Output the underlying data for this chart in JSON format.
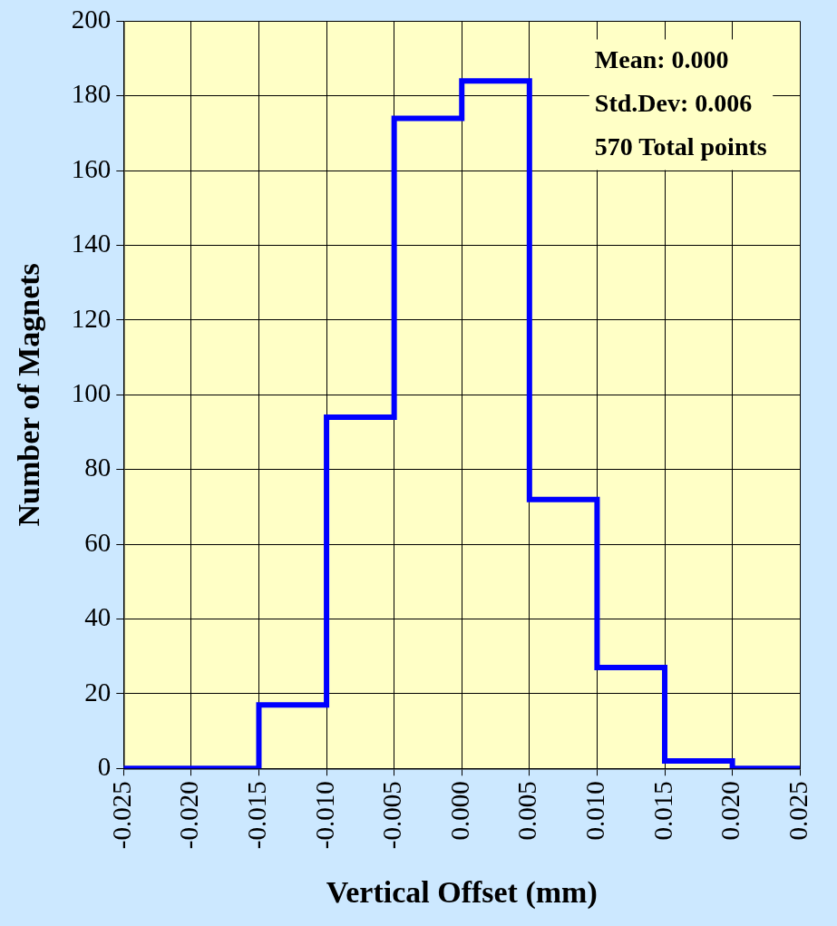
{
  "chart_data": {
    "type": "histogram",
    "xlabel": "Vertical Offset (mm)",
    "ylabel": "Number of Magnets",
    "bins": [
      -0.025,
      -0.02,
      -0.015,
      -0.01,
      -0.005,
      0,
      0.005,
      0.01,
      0.015,
      0.02,
      0.025
    ],
    "values": [
      0,
      0,
      17,
      94,
      174,
      184,
      72,
      27,
      2,
      0
    ],
    "color": "#0000ff",
    "xlim": [
      -0.025,
      0.025
    ],
    "xticks": [
      {
        "value": -0.025,
        "label": "-0.025"
      },
      {
        "value": -0.02,
        "label": "-0.020"
      },
      {
        "value": -0.015,
        "label": "-0.015"
      },
      {
        "value": -0.01,
        "label": "-0.010"
      },
      {
        "value": -0.005,
        "label": "-0.005"
      },
      {
        "value": 0,
        "label": "0.000"
      },
      {
        "value": 0.005,
        "label": "0.005"
      },
      {
        "value": 0.01,
        "label": "0.010"
      },
      {
        "value": 0.015,
        "label": "0.015"
      },
      {
        "value": 0.02,
        "label": "0.020"
      },
      {
        "value": 0.025,
        "label": "0.025"
      }
    ],
    "ylim": [
      0,
      200
    ],
    "yticks": [
      0,
      20,
      40,
      60,
      80,
      100,
      120,
      140,
      160,
      180,
      200
    ],
    "grid": true,
    "annotations": [
      "Mean: 0.000",
      "Std.Dev: 0.006",
      "570 Total points"
    ]
  }
}
